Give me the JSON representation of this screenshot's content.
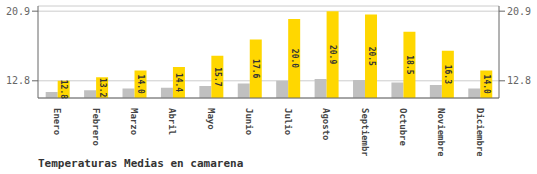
{
  "chart_data": {
    "type": "bar",
    "title": "Temperaturas Medias en camarena",
    "categories": [
      "Enero",
      "Febrero",
      "Marzo",
      "Abril",
      "Mayo",
      "Junio",
      "Julio",
      "Agosto",
      "Septiembre",
      "Octubre",
      "Noviembre",
      "Diciembre"
    ],
    "series": [
      {
        "color": "#C0C0C0",
        "values": [
          11.5,
          11.7,
          11.9,
          12.0,
          12.2,
          12.5,
          12.8,
          13.0,
          12.9,
          12.6,
          12.3,
          11.9
        ]
      },
      {
        "color": "#FFD700",
        "values": [
          12.8,
          13.2,
          14.0,
          14.4,
          15.7,
          17.6,
          20.0,
          20.9,
          20.5,
          18.5,
          16.3,
          14.0
        ],
        "data_labels": true,
        "value_labels": [
          "12.8",
          "13.2",
          "14.0",
          "14.4",
          "15.7",
          "17.6",
          "20.0",
          "20.9",
          "20.5",
          "18.5",
          "16.3",
          "14.0"
        ]
      }
    ],
    "ylim": [
      10.8,
      21.5
    ],
    "yticks": [
      12.8,
      20.9
    ],
    "y2lim": [
      10.8,
      21.5
    ],
    "y2ticks": [
      12.8,
      20.9
    ],
    "grid": true
  }
}
